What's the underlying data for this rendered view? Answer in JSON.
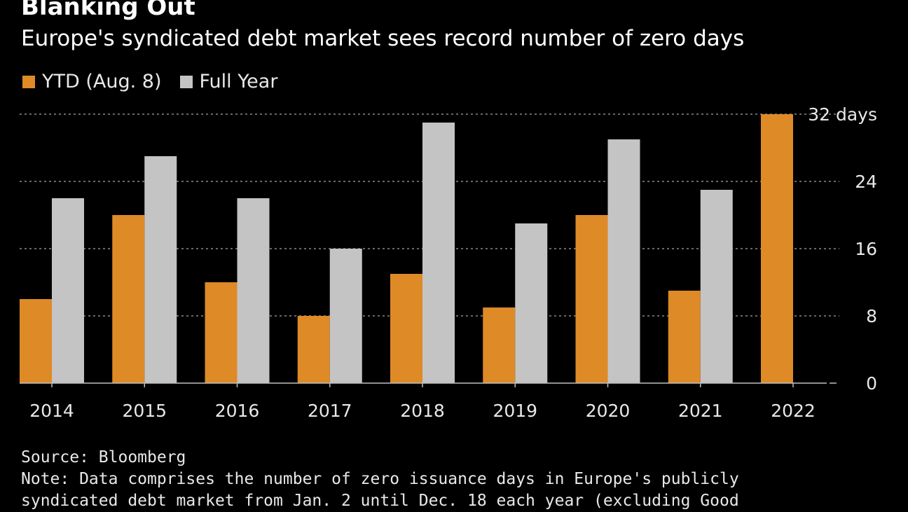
{
  "colors": {
    "ytd": "#dd8a27",
    "full_year": "#c4c4c4",
    "grid": "#8a8a8a",
    "axis": "#bfbfbf",
    "text": "#e8e8e8"
  },
  "footer": {
    "source": "Source: Bloomberg",
    "note_line1": "Note: Data comprises the number of zero issuance days in Europe's publicly",
    "note_line2": "syndicated debt market from Jan. 2 until Dec. 18 each year (excluding Good"
  },
  "chart_data": {
    "type": "bar",
    "title": "Blanking Out",
    "subtitle": "Europe's syndicated debt market sees record number of zero days",
    "categories": [
      "2014",
      "2015",
      "2016",
      "2017",
      "2018",
      "2019",
      "2020",
      "2021",
      "2022"
    ],
    "series": [
      {
        "name": "YTD (Aug. 8)",
        "values": [
          10,
          20,
          12,
          8,
          13,
          9,
          20,
          11,
          32
        ]
      },
      {
        "name": "Full Year",
        "values": [
          22,
          27,
          22,
          16,
          31,
          19,
          29,
          23,
          null
        ]
      }
    ],
    "ylim": [
      0,
      32
    ],
    "yticks": [
      0,
      8,
      16,
      24,
      32
    ],
    "ytick_labels": [
      "0",
      "8",
      "16",
      "24",
      "32 days"
    ],
    "xlabel": "",
    "ylabel": "",
    "grid": true,
    "legend_position": "top-left"
  }
}
